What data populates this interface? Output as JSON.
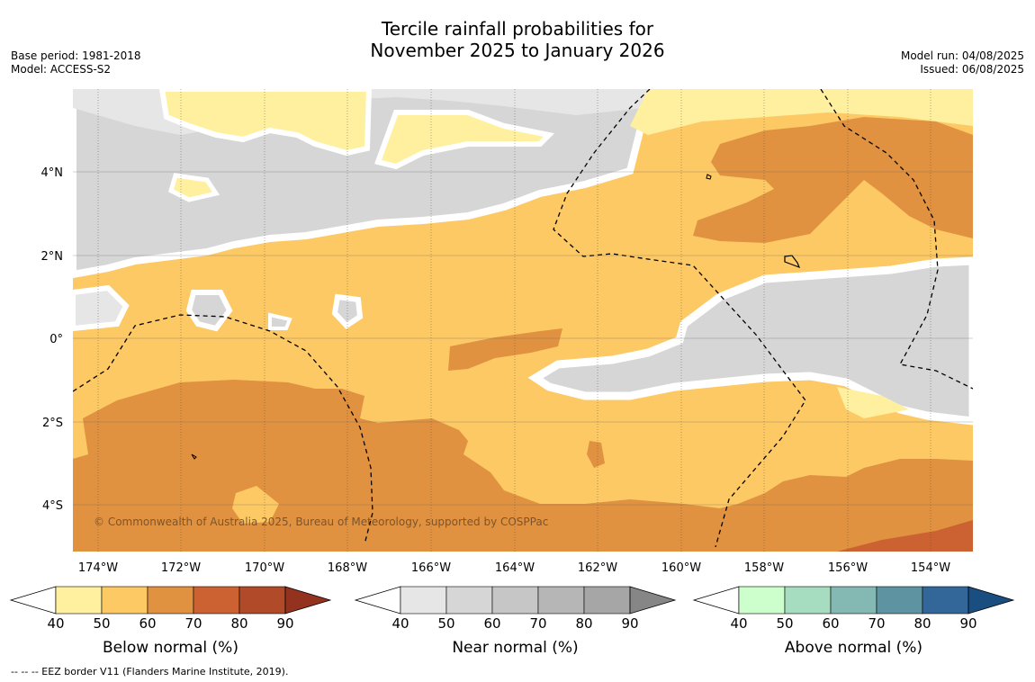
{
  "title_line1": "Tercile rainfall probabilities for",
  "title_line2": "November 2025 to January 2026",
  "meta_left": {
    "base_period": "Base period: 1981-2018",
    "model": "Model: ACCESS-S2"
  },
  "meta_right": {
    "model_run": "Model run: 04/08/2025",
    "issued": "Issued: 06/08/2025"
  },
  "copyright": "© Commonwealth of Australia 2025, Bureau of Meteorology, supported by COSPPac",
  "lon_labels": [
    "174°W",
    "172°W",
    "170°W",
    "168°W",
    "166°W",
    "164°W",
    "162°W",
    "160°W",
    "158°W",
    "156°W",
    "154°W"
  ],
  "lat_labels": [
    "4°N",
    "2°N",
    "0°",
    "2°S",
    "4°S"
  ],
  "colorbars": [
    {
      "name": "Below normal (%)",
      "ticks": [
        "40",
        "50",
        "60",
        "70",
        "80",
        "90"
      ],
      "colors": [
        "#fff0a0",
        "#fdc964",
        "#e09241",
        "#cc6232",
        "#b04a28",
        "#943220"
      ]
    },
    {
      "name": "Near normal (%)",
      "ticks": [
        "40",
        "50",
        "60",
        "70",
        "80",
        "90"
      ],
      "colors": [
        "#e6e6e6",
        "#d6d6d6",
        "#c6c6c6",
        "#b6b6b6",
        "#a6a6a6",
        "#868686"
      ]
    },
    {
      "name": "Above normal (%)",
      "ticks": [
        "40",
        "50",
        "60",
        "70",
        "80",
        "90"
      ],
      "colors": [
        "#ccffcc",
        "#a6dcbf",
        "#84b8b3",
        "#5e94a2",
        "#336699",
        "#1a4d80"
      ]
    }
  ],
  "footer": "--  --  -- EEZ border V11 (Flanders Marine Institute, 2019)."
}
